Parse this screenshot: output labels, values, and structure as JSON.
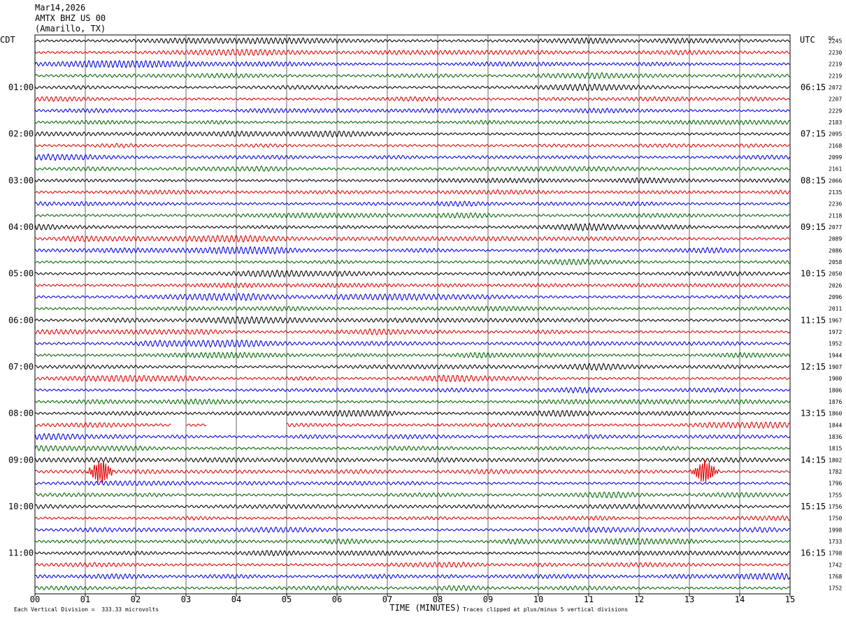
{
  "header": {
    "date": "Mar14,2026",
    "station": "AMTX BHZ US 00",
    "location": "(Amarillo, TX)",
    "left_tz": "CDT",
    "right_tz": "UTC",
    "dc_label": "DC"
  },
  "footer": {
    "scale_text": "Each Vertical Division =  333.33 microvolts",
    "xlabel": "TIME (MINUTES)",
    "clip_text": "Traces clipped at plus/minus 5 vertical divisions"
  },
  "colors": {
    "cycle": [
      "#000000",
      "#e00000",
      "#0000e0",
      "#006400"
    ],
    "grid": "#000000"
  },
  "chart_data": {
    "type": "line",
    "title": "AMTX BHZ US 00",
    "xlabel": "TIME (MINUTES)",
    "xlim": [
      0,
      15
    ],
    "x_ticks": [
      "00",
      "01",
      "02",
      "03",
      "04",
      "05",
      "06",
      "07",
      "08",
      "09",
      "10",
      "11",
      "12",
      "13",
      "14",
      "15"
    ],
    "trace_count": 48,
    "minutes_per_trace": 15,
    "left_hour_labels": [
      {
        "trace": 4,
        "label": "01:00"
      },
      {
        "trace": 8,
        "label": "02:00"
      },
      {
        "trace": 12,
        "label": "03:00"
      },
      {
        "trace": 16,
        "label": "04:00"
      },
      {
        "trace": 20,
        "label": "05:00"
      },
      {
        "trace": 24,
        "label": "06:00"
      },
      {
        "trace": 28,
        "label": "07:00"
      },
      {
        "trace": 32,
        "label": "08:00"
      },
      {
        "trace": 36,
        "label": "09:00"
      },
      {
        "trace": 40,
        "label": "10:00"
      },
      {
        "trace": 44,
        "label": "11:00"
      }
    ],
    "right_hour_labels": [
      {
        "trace": 4,
        "label": "06:15"
      },
      {
        "trace": 8,
        "label": "07:15"
      },
      {
        "trace": 12,
        "label": "08:15"
      },
      {
        "trace": 16,
        "label": "09:15"
      },
      {
        "trace": 20,
        "label": "10:15"
      },
      {
        "trace": 24,
        "label": "11:15"
      },
      {
        "trace": 28,
        "label": "12:15"
      },
      {
        "trace": 32,
        "label": "13:15"
      },
      {
        "trace": 36,
        "label": "14:15"
      },
      {
        "trace": 40,
        "label": "15:15"
      },
      {
        "trace": 44,
        "label": "16:15"
      }
    ],
    "dc_offsets": [
      "2245",
      "2230",
      "2219",
      "2219",
      "2072",
      "2207",
      "2229",
      "2183",
      "2095",
      "2168",
      "2099",
      "2161",
      "2066",
      "2135",
      "2236",
      "2118",
      "2077",
      "2089",
      "2086",
      "2058",
      "2050",
      "2026",
      "2096",
      "2011",
      "1967",
      "1972",
      "1952",
      "1944",
      "1907",
      "1900",
      "1806",
      "1876",
      "1860",
      "1844",
      "1836",
      "1815",
      "1802",
      "1782",
      "1796",
      "1755",
      "1756",
      "1750",
      "1998",
      "1733",
      "1798",
      "1742",
      "1768",
      "1752"
    ],
    "events": [
      {
        "trace": 37,
        "start_min": 1.0,
        "end_min": 1.6,
        "description": "burst"
      },
      {
        "trace": 37,
        "start_min": 13.0,
        "end_min": 13.6,
        "description": "burst"
      }
    ],
    "gaps": [
      {
        "trace": 33,
        "start_min": 2.7,
        "end_min": 3.0
      },
      {
        "trace": 33,
        "start_min": 3.4,
        "end_min": 4.0
      },
      {
        "trace": 33,
        "start_min": 4.0,
        "end_min": 5.0
      }
    ]
  }
}
